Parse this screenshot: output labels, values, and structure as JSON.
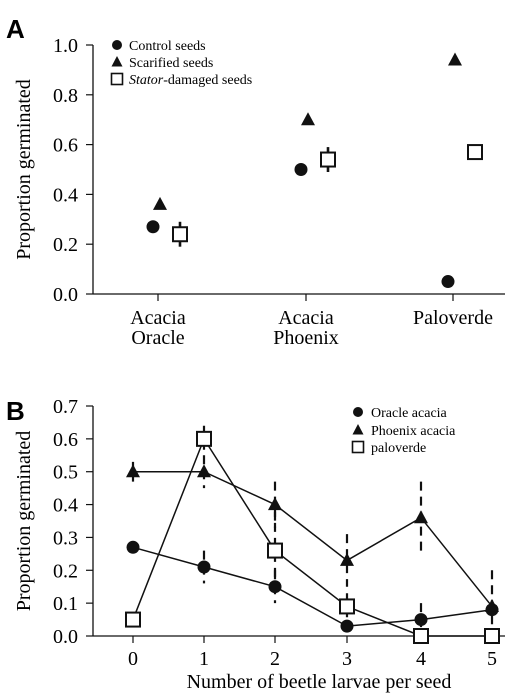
{
  "figure": {
    "panel_a_letter": "A",
    "panel_b_letter": "B"
  },
  "chart_data": [
    {
      "type": "scatter",
      "panel": "A",
      "ylabel": "Proportion germinated",
      "ylim": [
        0.0,
        1.0
      ],
      "yticks": [
        "0.0",
        "0.2",
        "0.4",
        "0.6",
        "0.8",
        "1.0"
      ],
      "categories": [
        [
          "Acacia",
          "Oracle"
        ],
        [
          "Acacia",
          "Phoenix"
        ],
        [
          "Paloverde"
        ]
      ],
      "legend_position": "top-left",
      "series": [
        {
          "name": "Control seeds",
          "marker": "circle",
          "values": [
            0.27,
            0.5,
            0.05
          ],
          "err": [
            0,
            0,
            0
          ]
        },
        {
          "name": "Scarified seeds",
          "marker": "triangle",
          "values": [
            0.36,
            0.7,
            0.94
          ],
          "err": [
            0,
            0,
            0
          ]
        },
        {
          "name": "Stator-damaged seeds",
          "name_italic_part": "Stator",
          "name_rest": "-damaged seeds",
          "marker": "square",
          "values": [
            0.24,
            0.54,
            0.57
          ],
          "err": [
            0.05,
            0.05,
            0.03
          ]
        }
      ]
    },
    {
      "type": "line",
      "panel": "B",
      "xlabel": "Number of beetle larvae per seed",
      "ylabel": "Proportion germinated",
      "x": [
        0,
        1,
        2,
        3,
        4,
        5
      ],
      "xticks": [
        "0",
        "1",
        "2",
        "3",
        "4",
        "5"
      ],
      "ylim": [
        0.0,
        0.7
      ],
      "yticks": [
        "0.0",
        "0.1",
        "0.2",
        "0.3",
        "0.4",
        "0.5",
        "0.6",
        "0.7"
      ],
      "legend_position": "top-right",
      "series": [
        {
          "name": "Oracle acacia",
          "marker": "circle",
          "values": [
            0.27,
            0.21,
            0.15,
            0.03,
            0.05,
            0.08
          ],
          "err": [
            0,
            0.05,
            0.05,
            0,
            0.05,
            0.12
          ]
        },
        {
          "name": "Phoenix acacia",
          "marker": "triangle",
          "values": [
            0.5,
            0.5,
            0.4,
            0.23,
            0.36,
            0.09
          ],
          "err": [
            0.03,
            0.05,
            0.07,
            0.08,
            0.11,
            0
          ]
        },
        {
          "name": "paloverde",
          "marker": "square",
          "values": [
            0.05,
            0.6,
            0.26,
            0.09,
            0.0,
            0.0
          ],
          "err": [
            0,
            0.04,
            0.13,
            0.04,
            0,
            0
          ]
        }
      ]
    }
  ]
}
